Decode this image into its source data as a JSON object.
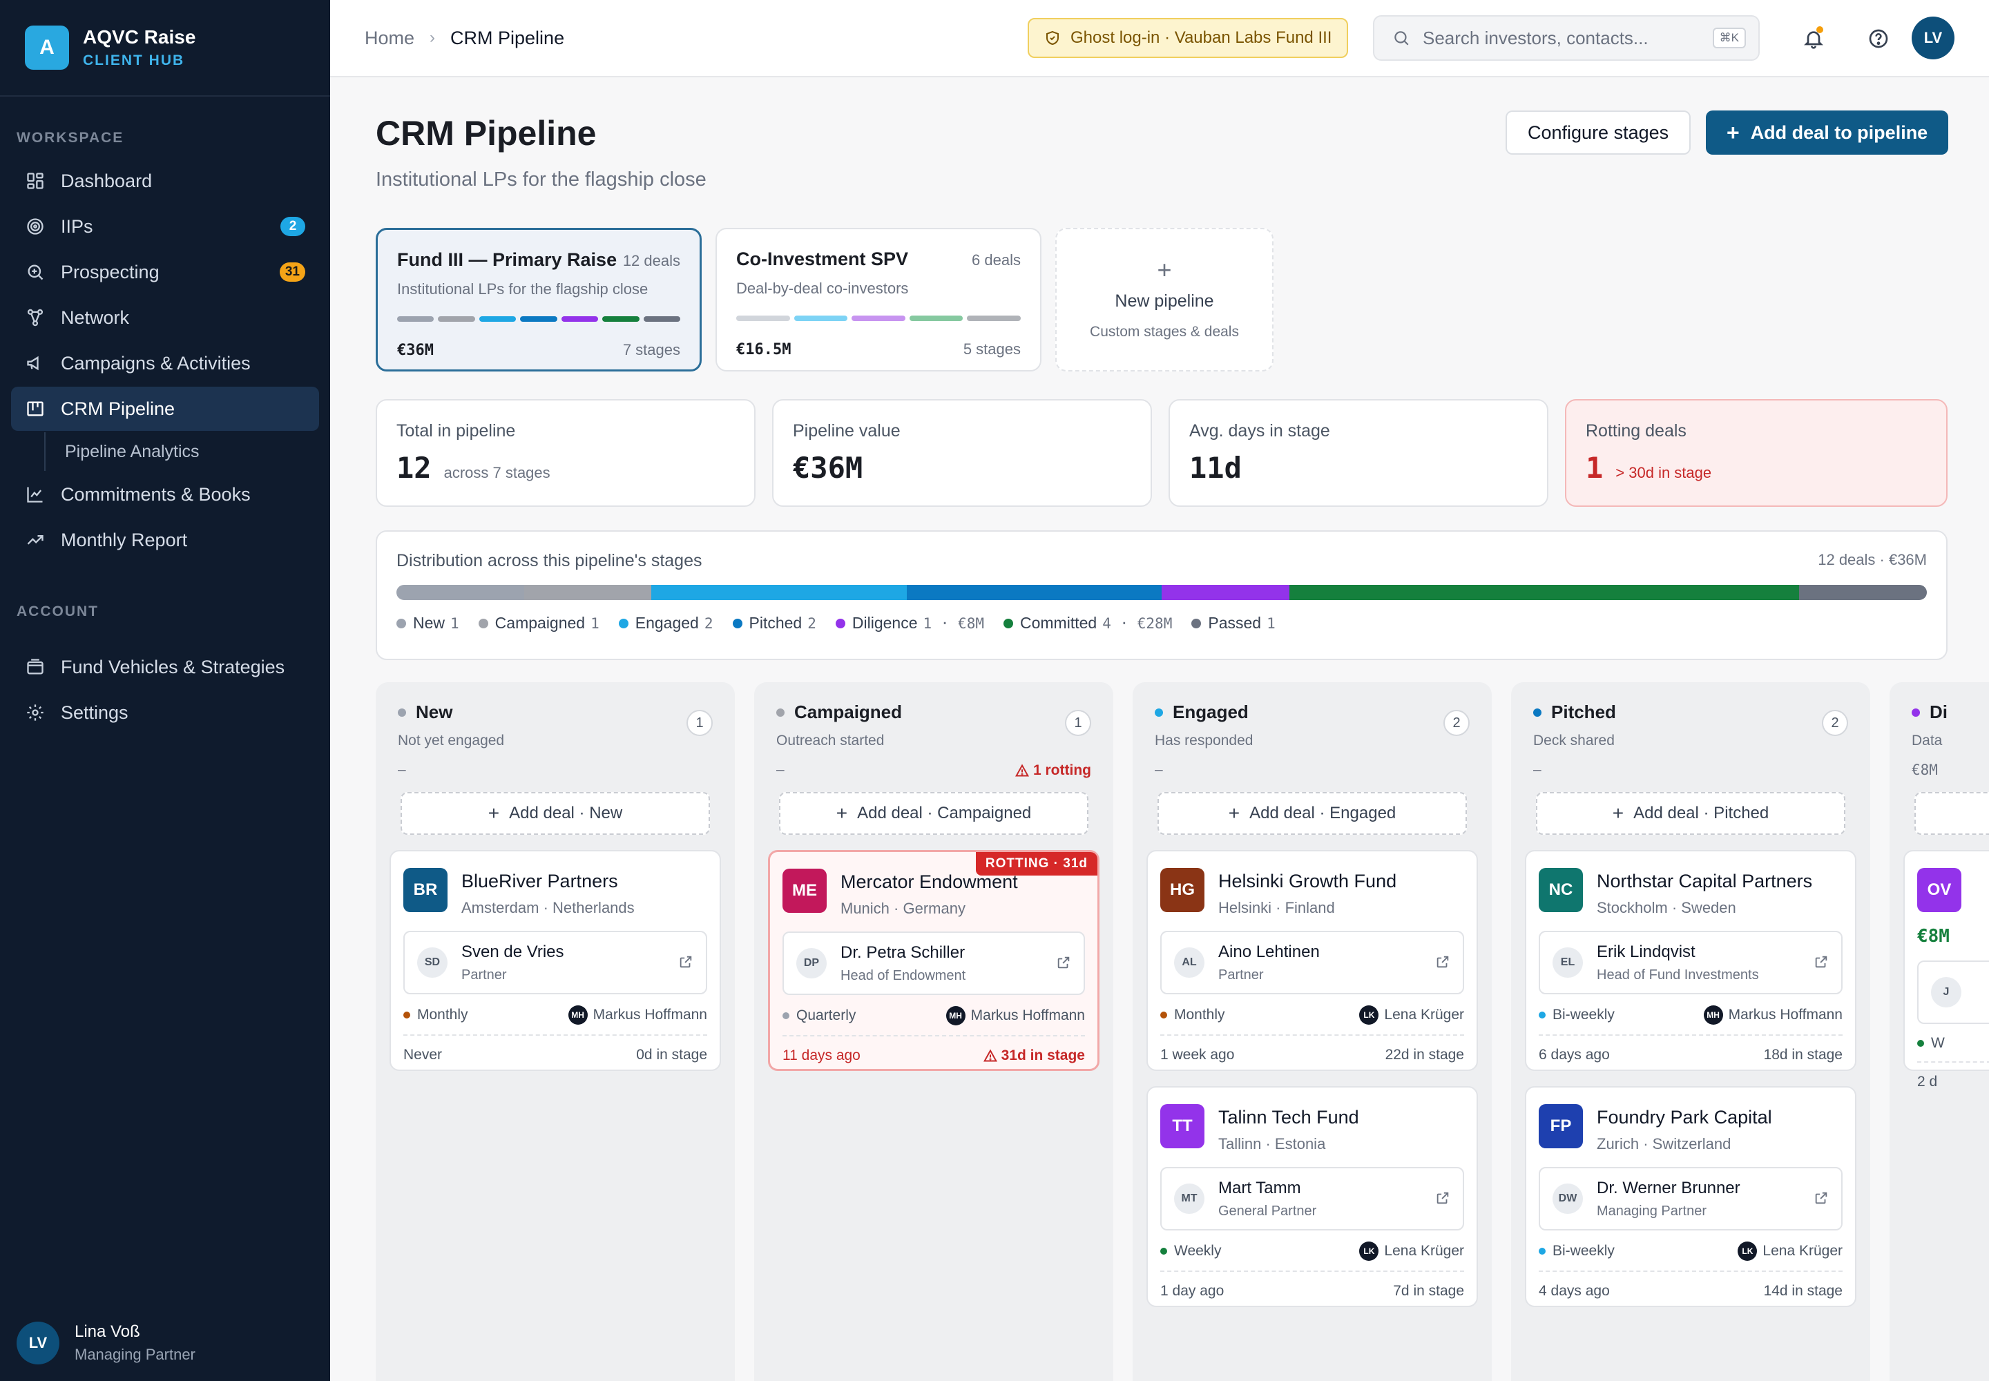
{
  "brand": {
    "logo_letter": "A",
    "name": "AQVC Raise",
    "sub": "CLIENT HUB"
  },
  "sidebar": {
    "workspace_label": "WORKSPACE",
    "account_label": "ACCOUNT",
    "items": [
      {
        "label": "Dashboard",
        "icon": "grid-icon"
      },
      {
        "label": "IIPs",
        "icon": "target-icon",
        "badge": "2"
      },
      {
        "label": "Prospecting",
        "icon": "zoom-icon",
        "badge": "31"
      },
      {
        "label": "Network",
        "icon": "network-icon"
      },
      {
        "label": "Campaigns & Activities",
        "icon": "megaphone-icon"
      },
      {
        "label": "CRM Pipeline",
        "icon": "kanban-icon"
      },
      {
        "label": "Pipeline Analytics"
      },
      {
        "label": "Commitments & Books",
        "icon": "chart-icon"
      },
      {
        "label": "Monthly Report",
        "icon": "trend-icon"
      },
      {
        "label": "Fund Vehicles & Strategies",
        "icon": "wallet-icon"
      },
      {
        "label": "Settings",
        "icon": "gear-icon"
      }
    ],
    "user": {
      "initials": "LV",
      "name": "Lina Voß",
      "role": "Managing Partner"
    }
  },
  "topbar": {
    "crumb_home": "Home",
    "crumb_current": "CRM Pipeline",
    "ghost_label": "Ghost log-in · Vauban Labs Fund III",
    "search_placeholder": "Search investors, contacts...",
    "search_kbd": "⌘K",
    "avatar_initials": "LV"
  },
  "page": {
    "title": "CRM Pipeline",
    "subtitle": "Institutional LPs for the flagship close",
    "configure_label": "Configure stages",
    "add_label": "Add deal to pipeline"
  },
  "pipelines": [
    {
      "title": "Fund III — Primary Raise",
      "count": "12 deals",
      "desc": "Institutional LPs for the flagship close",
      "value": "€36M",
      "stages": "7 stages",
      "colors": [
        "#9ca3af",
        "#a1a4ab",
        "#1ea7e4",
        "#0b79c2",
        "#9333ea",
        "#15803d",
        "#6b7280"
      ]
    },
    {
      "title": "Co-Investment SPV",
      "count": "6 deals",
      "desc": "Deal-by-deal co-investors",
      "value": "€16.5M",
      "stages": "5 stages",
      "colors": [
        "#d1d5db",
        "#7dd3f5",
        "#c794f0",
        "#86c9a0",
        "#b0b3b8"
      ]
    },
    {
      "title": "New pipeline",
      "desc": "Custom stages & deals"
    }
  ],
  "stats": [
    {
      "label": "Total in pipeline",
      "value": "12",
      "note": "across 7 stages"
    },
    {
      "label": "Pipeline value",
      "value": "€36M",
      "note": ""
    },
    {
      "label": "Avg. days in stage",
      "value": "11d",
      "note": ""
    },
    {
      "label": "Rotting deals",
      "value": "1",
      "note": "> 30d in stage"
    }
  ],
  "distribution": {
    "title": "Distribution across this pipeline's stages",
    "total": "12 deals · €36M",
    "segments": [
      {
        "name": "New",
        "count": 1,
        "color": "#9ca3af"
      },
      {
        "name": "Campaigned",
        "count": 1,
        "color": "#a1a4ab"
      },
      {
        "name": "Engaged",
        "count": 2,
        "color": "#1ea7e4"
      },
      {
        "name": "Pitched",
        "count": 2,
        "color": "#0b79c2"
      },
      {
        "name": "Diligence",
        "count": 1,
        "color": "#9333ea",
        "extra": " · €8M"
      },
      {
        "name": "Committed",
        "count": 4,
        "color": "#15803d",
        "extra": " · €28M"
      },
      {
        "name": "Passed",
        "count": 1,
        "color": "#6b7280"
      }
    ]
  },
  "columns": [
    {
      "name": "New",
      "desc": "Not yet engaged",
      "count": "1",
      "dot": "#9ca3af",
      "meta_left": "–",
      "meta_right": "",
      "add": "Add deal · New",
      "deals": [
        {
          "initials": "BR",
          "logo": "#0f5a87",
          "name": "BlueRiver Partners",
          "loc": "Amsterdam · Netherlands",
          "c_initials": "SD",
          "c_name": "Sven de Vries",
          "c_role": "Partner",
          "cadence": "Monthly",
          "cad_color": "#b45309",
          "o_initials": "MH",
          "owner": "Markus Hoffmann",
          "last": "Never",
          "days": "0d in stage"
        }
      ]
    },
    {
      "name": "Campaigned",
      "desc": "Outreach started",
      "count": "1",
      "dot": "#a1a4ab",
      "meta_left": "–",
      "meta_right": "1 rotting",
      "add": "Add deal · Campaigned",
      "deals": [
        {
          "initials": "ME",
          "logo": "#c2185b",
          "name": "Mercator Endowment",
          "loc": "Munich · Germany",
          "rot": "ROTTING · 31d",
          "c_initials": "DP",
          "c_name": "Dr. Petra Schiller",
          "c_role": "Head of Endowment",
          "cadence": "Quarterly",
          "cad_color": "#9ca3af",
          "o_initials": "MH",
          "owner": "Markus Hoffmann",
          "last": "11 days ago",
          "days": "31d in stage"
        }
      ]
    },
    {
      "name": "Engaged",
      "desc": "Has responded",
      "count": "2",
      "dot": "#1ea7e4",
      "meta_left": "–",
      "meta_right": "",
      "add": "Add deal · Engaged",
      "deals": [
        {
          "initials": "HG",
          "logo": "#8a3415",
          "name": "Helsinki Growth Fund",
          "loc": "Helsinki · Finland",
          "c_initials": "AL",
          "c_name": "Aino Lehtinen",
          "c_role": "Partner",
          "cadence": "Monthly",
          "cad_color": "#b45309",
          "o_initials": "LK",
          "owner": "Lena Krüger",
          "last": "1 week ago",
          "days": "22d in stage"
        },
        {
          "initials": "TT",
          "logo": "#9333ea",
          "name": "Talinn Tech Fund",
          "loc": "Tallinn · Estonia",
          "c_initials": "MT",
          "c_name": "Mart Tamm",
          "c_role": "General Partner",
          "cadence": "Weekly",
          "cad_color": "#15803d",
          "o_initials": "LK",
          "owner": "Lena Krüger",
          "last": "1 day ago",
          "days": "7d in stage"
        }
      ]
    },
    {
      "name": "Pitched",
      "desc": "Deck shared",
      "count": "2",
      "dot": "#0b79c2",
      "meta_left": "–",
      "meta_right": "",
      "add": "Add deal · Pitched",
      "deals": [
        {
          "initials": "NC",
          "logo": "#0f766e",
          "name": "Northstar Capital Partners",
          "loc": "Stockholm · Sweden",
          "c_initials": "EL",
          "c_name": "Erik Lindqvist",
          "c_role": "Head of Fund Investments",
          "cadence": "Bi-weekly",
          "cad_color": "#1ea7e4",
          "o_initials": "MH",
          "owner": "Markus Hoffmann",
          "last": "6 days ago",
          "days": "18d in stage"
        },
        {
          "initials": "FP",
          "logo": "#1e40af",
          "name": "Foundry Park Capital",
          "loc": "Zurich · Switzerland",
          "c_initials": "DW",
          "c_name": "Dr. Werner Brunner",
          "c_role": "Managing Partner",
          "cadence": "Bi-weekly",
          "cad_color": "#1ea7e4",
          "o_initials": "LK",
          "owner": "Lena Krüger",
          "last": "4 days ago",
          "days": "14d in stage"
        }
      ]
    },
    {
      "name": "Di",
      "desc": "Data",
      "meta_left": "€8M",
      "dot": "#9333ea",
      "partial_logo": "OV",
      "partial_value": "€8M",
      "partial_contact": "J",
      "partial_cad": "W",
      "partial_last": "2 d"
    }
  ]
}
